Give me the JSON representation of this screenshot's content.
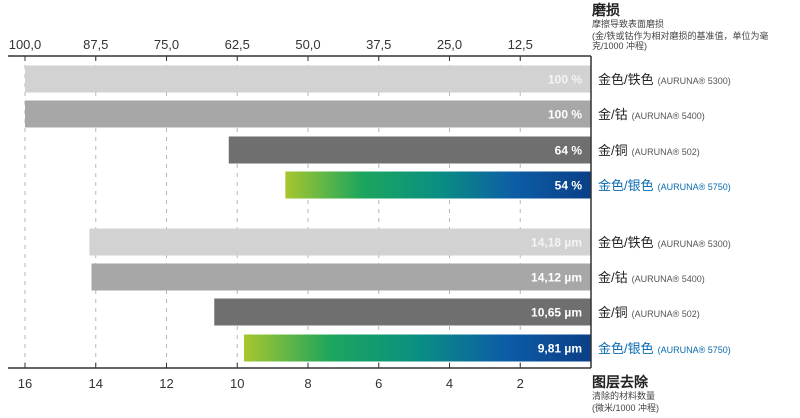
{
  "chart_data": [
    {
      "type": "bar",
      "orientation": "horizontal",
      "direction": "reversed",
      "title": "磨损",
      "subtitle": "摩擦导致表面磨损",
      "note": "(金/铁或钴作为相对磨损的基准值，单位为毫克/1000 冲程)",
      "axis_ticks": [
        "100,0",
        "87,5",
        "75,0",
        "62,5",
        "50,0",
        "37,5",
        "25,0",
        "12,5"
      ],
      "xlim": [
        0,
        100
      ],
      "axis_position": "top",
      "grid": true,
      "categories": [
        "金色/铁色",
        "金/钴",
        "金/铜",
        "金色/银色"
      ],
      "codes": [
        "(AURUNA® 5300)",
        "(AURUNA® 5400)",
        "(AURUNA® 502)",
        "(AURUNA® 5750)"
      ],
      "values": [
        100,
        100,
        64,
        54
      ],
      "value_labels": [
        "100 %",
        "100 %",
        "64 %",
        "54 %"
      ]
    },
    {
      "type": "bar",
      "orientation": "horizontal",
      "direction": "reversed",
      "title": "图层去除",
      "subtitle": "清除的材料数量",
      "note": "(微米/1000 冲程)",
      "axis_ticks": [
        "16",
        "14",
        "12",
        "10",
        "8",
        "6",
        "4",
        "2"
      ],
      "xlim": [
        0,
        16
      ],
      "axis_position": "bottom",
      "grid": true,
      "categories": [
        "金色/铁色",
        "金/钴",
        "金/铜",
        "金色/银色"
      ],
      "codes": [
        "(AURUNA® 5300)",
        "(AURUNA® 5400)",
        "(AURUNA® 502)",
        "(AURUNA® 5750)"
      ],
      "values": [
        14.18,
        14.12,
        10.65,
        9.81
      ],
      "value_labels": [
        "14,18 µm",
        "14,12 µm",
        "10,65 µm",
        "9,81 µm"
      ]
    }
  ],
  "colors": {
    "bar_light": "#d2d2d2",
    "bar_mid": "#a7a7a7",
    "bar_dark": "#6f6f6f",
    "highlight_text": "#0a6bb0",
    "gradient": [
      "#a8c62e",
      "#1ca65d",
      "#0a8f82",
      "#0d5da6",
      "#0a3f87"
    ],
    "axis": "#333333",
    "grid": "#b5b5b5",
    "text": "#222222",
    "light_bar_label": "#f4f4f4"
  }
}
